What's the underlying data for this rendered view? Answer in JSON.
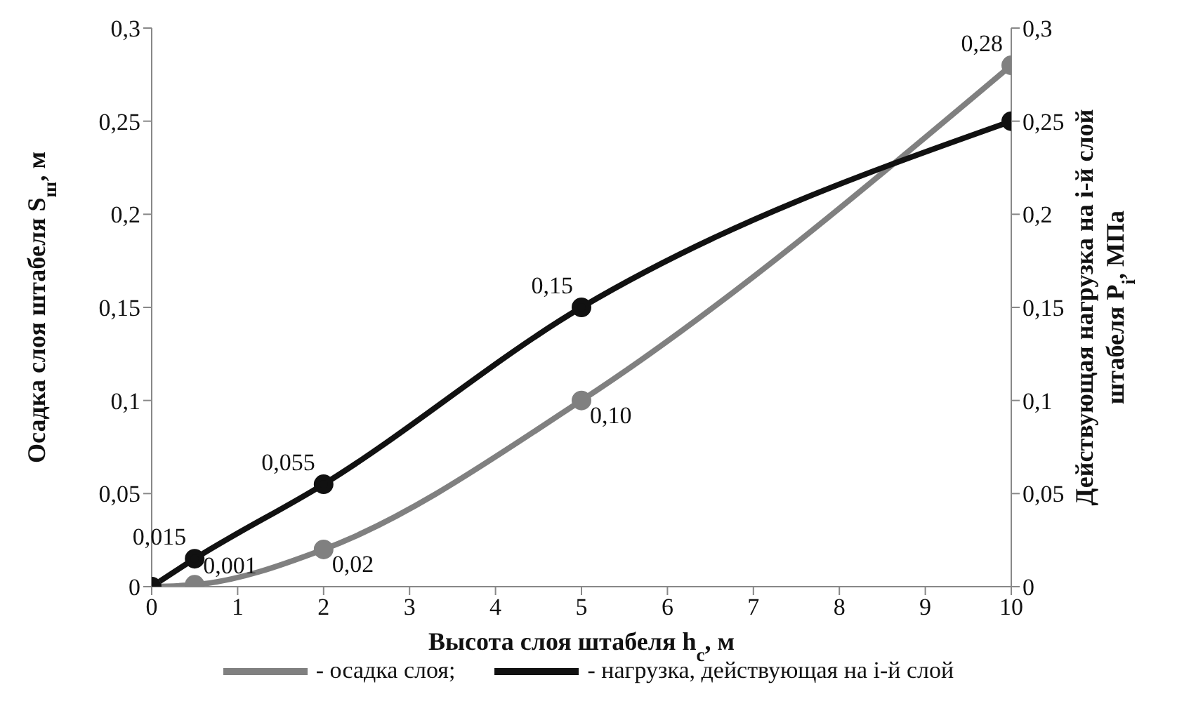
{
  "chart_data": {
    "type": "line",
    "xlabel": "Высота слоя штабеля h$_{с}$, м",
    "ylabel": "Осадка слоя штабеля  S$_{ш}$, м",
    "y2label": "Действующая нагрузка на i-й слой\nштабеля P$_{i}$, МПа",
    "x": [
      0,
      0.5,
      2,
      5,
      10
    ],
    "series": [
      {
        "name": "- осадка слоя;",
        "color": "#808080",
        "values": [
          0,
          0.001,
          0.02,
          0.1,
          0.28
        ],
        "value_labels": [
          null,
          "0,001",
          "0,02",
          "0,10",
          "0,28"
        ]
      },
      {
        "name": "- нагрузка, действующая на i-й слой",
        "color": "#111111",
        "values": [
          0,
          0.015,
          0.055,
          0.15,
          0.25
        ],
        "value_labels": [
          null,
          "0,015",
          "0,055",
          "0,15",
          null
        ]
      }
    ],
    "xlim": [
      0,
      10
    ],
    "xticks": [
      0,
      1,
      2,
      3,
      4,
      5,
      6,
      7,
      8,
      9,
      10
    ],
    "ylim": [
      0,
      0.3
    ],
    "yticks": [
      0,
      {
        "value": 0.05,
        "label": "0,05"
      },
      {
        "value": 0.1,
        "label": "0,1"
      },
      {
        "value": 0.15,
        "label": "0,15"
      },
      {
        "value": 0.2,
        "label": "0,2"
      },
      {
        "value": 0.25,
        "label": "0,25"
      },
      {
        "value": 0.3,
        "label": "0,3"
      }
    ],
    "y2lim": [
      0,
      0.3
    ],
    "y2ticks": [
      0,
      {
        "value": 0.05,
        "label": "0,05"
      },
      {
        "value": 0.1,
        "label": "0,1"
      },
      {
        "value": 0.15,
        "label": "0,15"
      },
      {
        "value": 0.2,
        "label": "0,2"
      },
      {
        "value": 0.25,
        "label": "0,25"
      },
      {
        "value": 0.3,
        "label": "0,3"
      }
    ],
    "grid": false,
    "legend": "bottom",
    "marker": "circle",
    "line_style": "solid"
  }
}
